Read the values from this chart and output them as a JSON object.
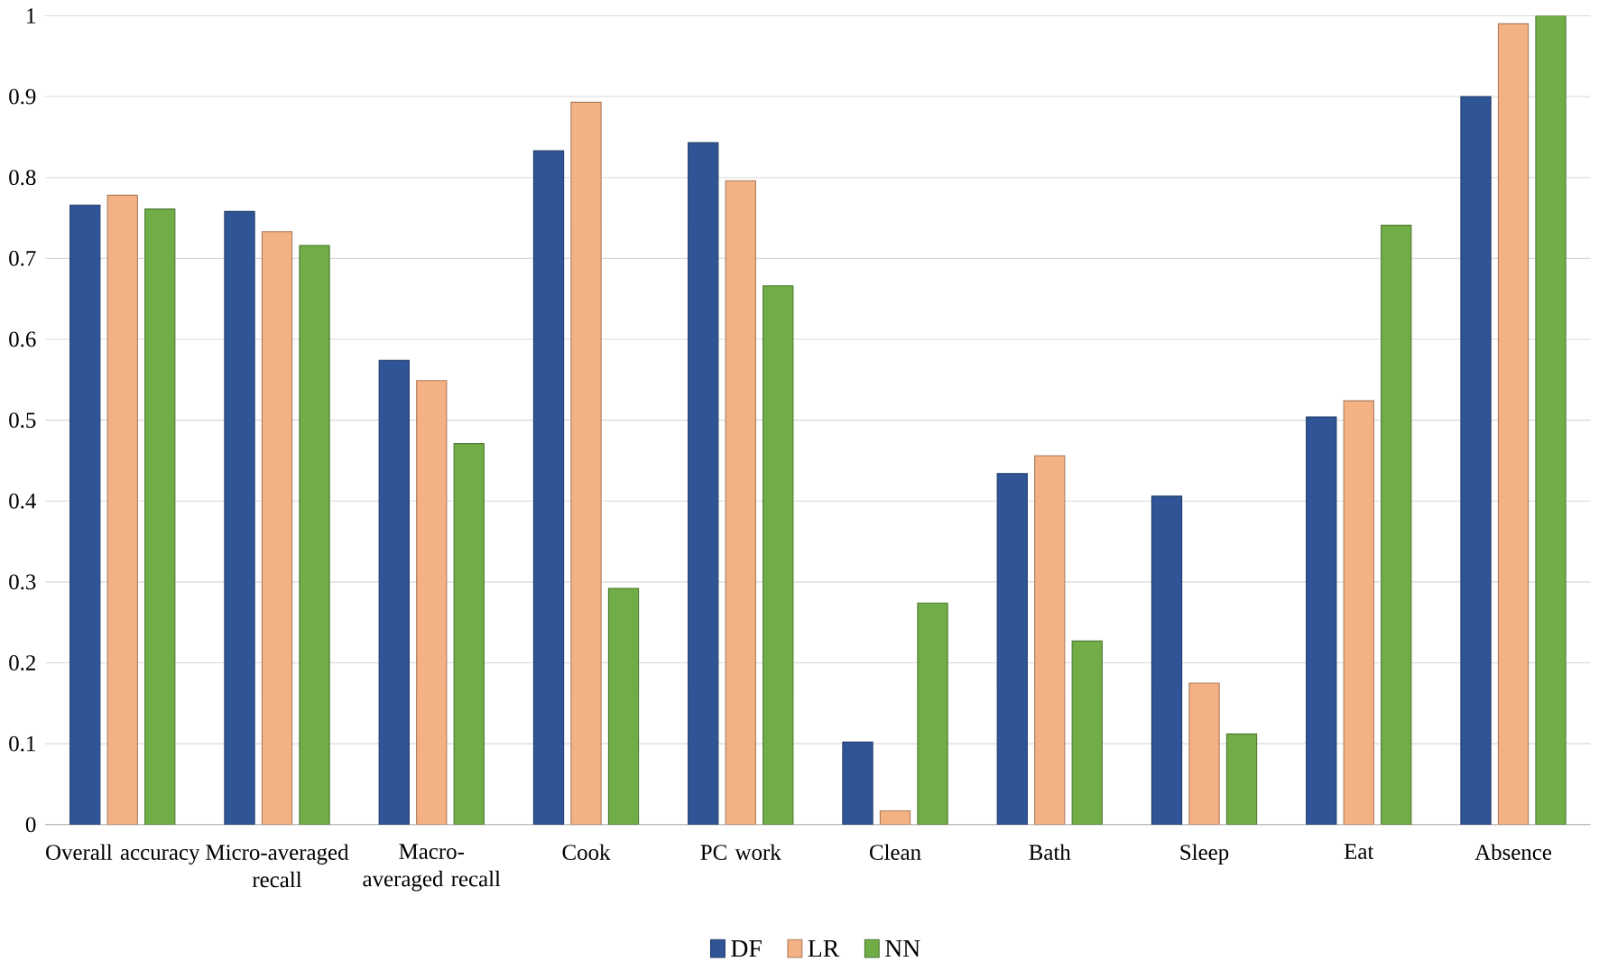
{
  "chart_data": {
    "type": "bar",
    "categories": [
      "Overall accuracy",
      "Micro-averaged recall",
      "Macro-averaged recall",
      "Cook",
      "PC work",
      "Clean",
      "Bath",
      "Sleep",
      "Eat",
      "Absence"
    ],
    "series": [
      {
        "name": "DF",
        "color": "#2f5597",
        "values": [
          0.766,
          0.758,
          0.574,
          0.833,
          0.843,
          0.102,
          0.434,
          0.406,
          0.504,
          0.9
        ]
      },
      {
        "name": "LR",
        "color": "#f4b183",
        "values": [
          0.778,
          0.733,
          0.549,
          0.893,
          0.796,
          0.017,
          0.456,
          0.175,
          0.524,
          0.99
        ]
      },
      {
        "name": "NN",
        "color": "#70ad47",
        "values": [
          0.761,
          0.716,
          0.471,
          0.292,
          0.666,
          0.274,
          0.227,
          0.112,
          0.741,
          1.0
        ]
      }
    ],
    "ylim": [
      0,
      1
    ],
    "yticks": [
      0,
      0.1,
      0.2,
      0.3,
      0.4,
      0.5,
      0.6,
      0.7,
      0.8,
      0.9,
      1
    ],
    "grid": "y",
    "legend": "bottom"
  }
}
